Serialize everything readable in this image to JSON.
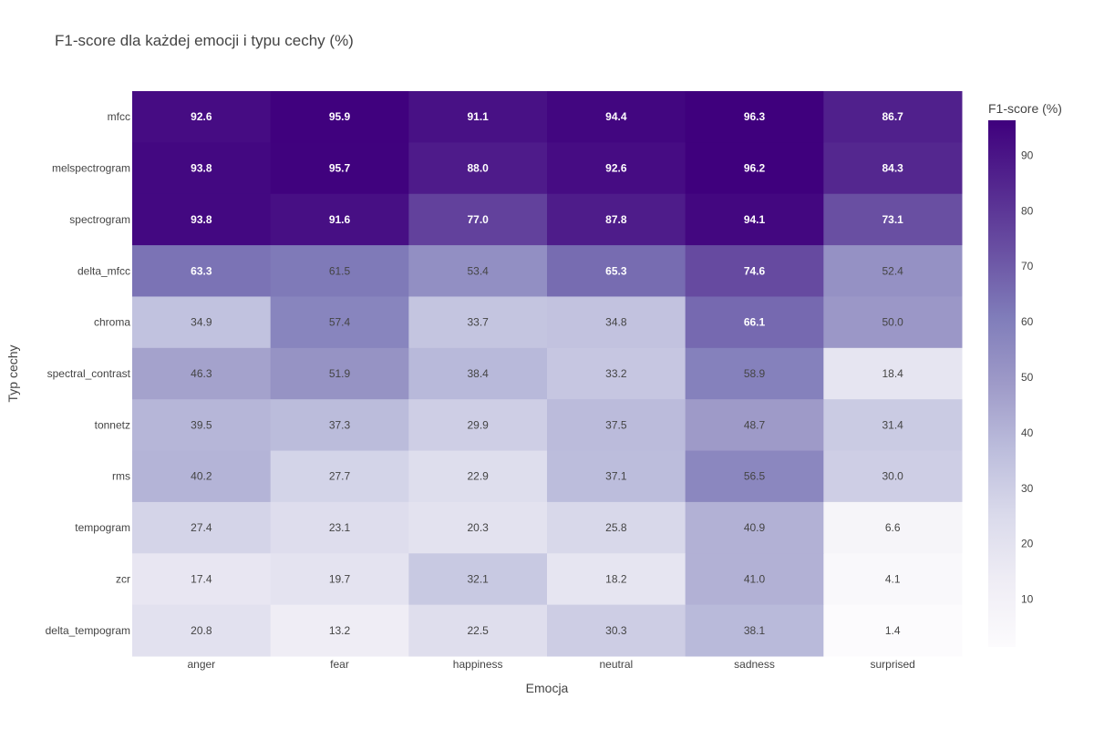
{
  "chart_data": {
    "type": "heatmap",
    "title": "F1-score dla każdej emocji i typu cechy (%)",
    "xlabel": "Emocja",
    "ylabel": "Typ cechy",
    "x_categories": [
      "anger",
      "fear",
      "happiness",
      "neutral",
      "sadness",
      "surprised"
    ],
    "y_categories": [
      "mfcc",
      "melspectrogram",
      "spectrogram",
      "delta_mfcc",
      "chroma",
      "spectral_contrast",
      "tonnetz",
      "rms",
      "tempogram",
      "zcr",
      "delta_tempogram"
    ],
    "values": [
      [
        92.6,
        95.9,
        91.1,
        94.4,
        96.3,
        86.7
      ],
      [
        93.8,
        95.7,
        88.0,
        92.6,
        96.2,
        84.3
      ],
      [
        93.8,
        91.6,
        77.0,
        87.8,
        94.1,
        73.1
      ],
      [
        63.3,
        61.5,
        53.4,
        65.3,
        74.6,
        52.4
      ],
      [
        34.9,
        57.4,
        33.7,
        34.8,
        66.1,
        50.0
      ],
      [
        46.3,
        51.9,
        38.4,
        33.2,
        58.9,
        18.4
      ],
      [
        39.5,
        37.3,
        29.9,
        37.5,
        48.7,
        31.4
      ],
      [
        40.2,
        27.7,
        22.9,
        37.1,
        56.5,
        30.0
      ],
      [
        27.4,
        23.1,
        20.3,
        25.8,
        40.9,
        6.6
      ],
      [
        17.4,
        19.7,
        32.1,
        18.2,
        41.0,
        4.1
      ],
      [
        20.8,
        13.2,
        22.5,
        30.3,
        38.1,
        1.4
      ]
    ],
    "value_format": "0.1f",
    "zmin": 1.4,
    "zmax": 96.3,
    "colorscale": "Purples",
    "colorscale_stops": [
      "#fcfbfd",
      "#efedf5",
      "#dadaeb",
      "#bcbddc",
      "#9e9ac8",
      "#807dba",
      "#6a51a3",
      "#54278f",
      "#3f007d"
    ],
    "colorbar": {
      "title": "F1-score (%)",
      "ticks": [
        10,
        20,
        30,
        40,
        50,
        60,
        70,
        80,
        90
      ]
    },
    "grid": false
  }
}
